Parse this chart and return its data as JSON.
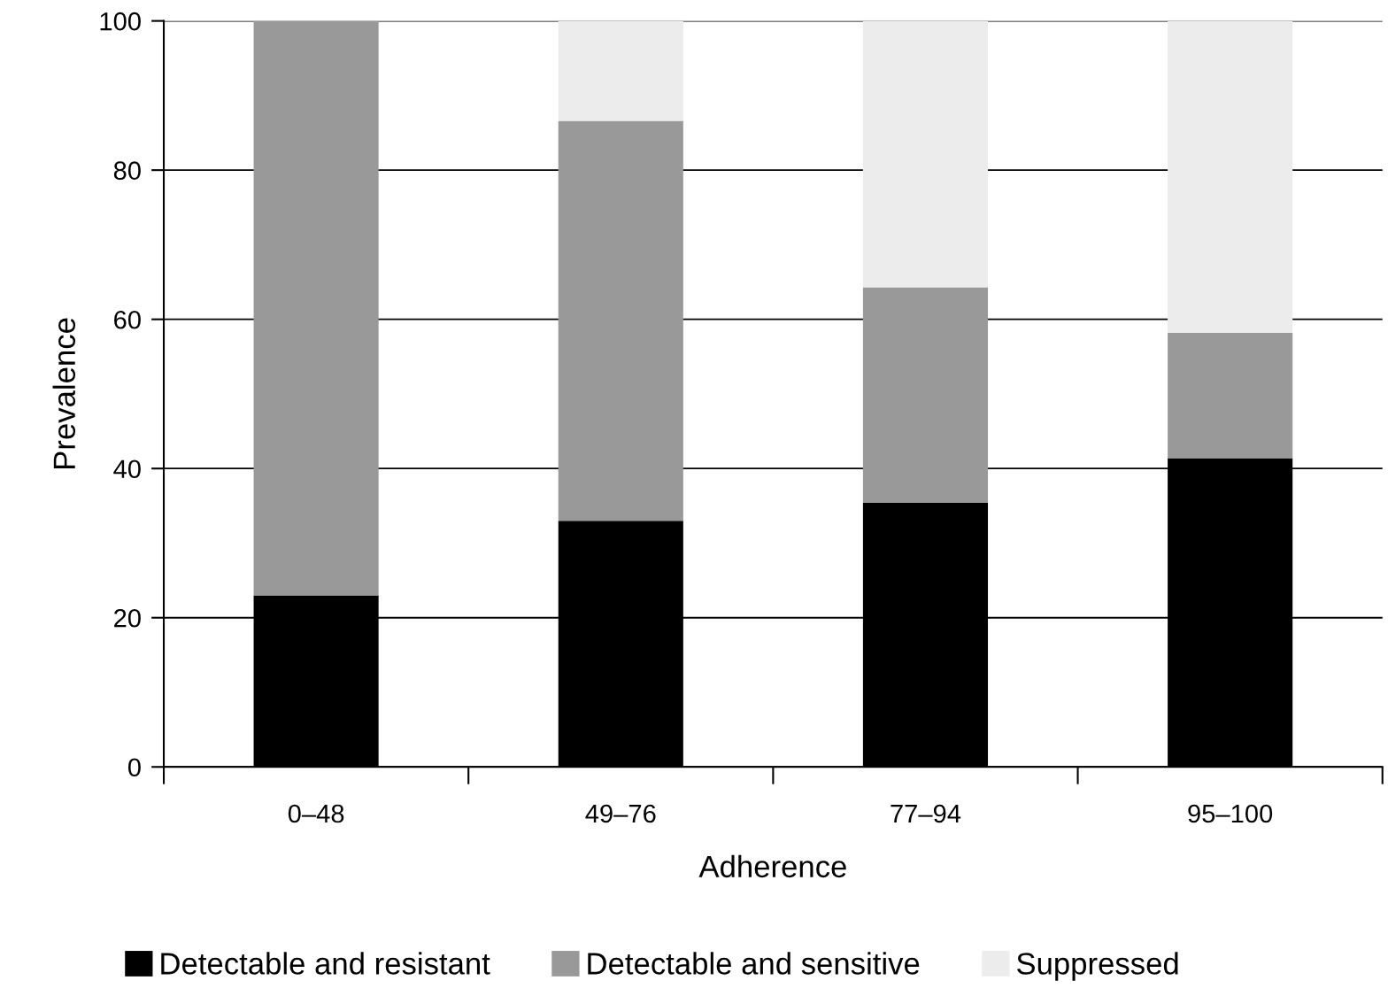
{
  "chart_data": {
    "type": "bar",
    "stacked": true,
    "xlabel": "Adherence",
    "ylabel": "Prevalence",
    "categories": [
      "0–48",
      "49–76",
      "77–94",
      "95–100"
    ],
    "series": [
      {
        "name": "Detectable and resistant",
        "color": "#000000",
        "values": [
          23,
          33,
          35.4,
          41.4
        ]
      },
      {
        "name": "Detectable and sensitive",
        "color": "#999999",
        "values": [
          77,
          53.6,
          28.9,
          16.8
        ]
      },
      {
        "name": "Suppressed",
        "color": "#ececec",
        "values": [
          0,
          13.4,
          35.7,
          41.8
        ]
      }
    ],
    "ylim": [
      0,
      100
    ],
    "yticks": [
      0,
      20,
      40,
      60,
      80,
      100
    ],
    "grid": "y",
    "legend": "bottom"
  }
}
